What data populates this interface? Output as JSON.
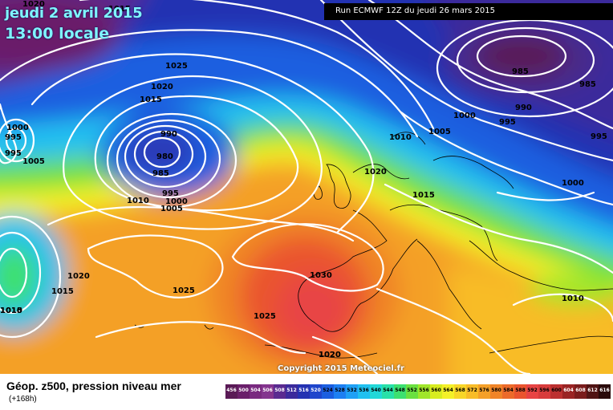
{
  "header": {
    "date": "jeudi 2 avril 2015",
    "time": "13:00 locale",
    "run": "Run ECMWF 12Z du jeudi 26 mars 2015"
  },
  "copyright": "Copyright 2015 Meteociel.fr",
  "legend": {
    "title": "Géop. z500, pression niveau mer",
    "subtitle": "(+168h)",
    "scale": [
      {
        "v": "456",
        "c": "#5a1a56"
      },
      {
        "v": "500",
        "c": "#6a1f6a"
      },
      {
        "v": "504",
        "c": "#7a2a80"
      },
      {
        "v": "506",
        "c": "#84348e"
      },
      {
        "v": "508",
        "c": "#5a2a90"
      },
      {
        "v": "512",
        "c": "#3b2a9c"
      },
      {
        "v": "516",
        "c": "#2432b2"
      },
      {
        "v": "520",
        "c": "#1f46cc"
      },
      {
        "v": "524",
        "c": "#1b5ee0"
      },
      {
        "v": "528",
        "c": "#1d7ff2"
      },
      {
        "v": "532",
        "c": "#1fa0f5"
      },
      {
        "v": "536",
        "c": "#20c0f0"
      },
      {
        "v": "540",
        "c": "#22d8d8"
      },
      {
        "v": "544",
        "c": "#28e0a8"
      },
      {
        "v": "548",
        "c": "#3ce070"
      },
      {
        "v": "552",
        "c": "#6ae040"
      },
      {
        "v": "556",
        "c": "#a0e62a"
      },
      {
        "v": "560",
        "c": "#d8ec20"
      },
      {
        "v": "564",
        "c": "#f4f028"
      },
      {
        "v": "568",
        "c": "#f8d628"
      },
      {
        "v": "572",
        "c": "#f8bc28"
      },
      {
        "v": "576",
        "c": "#f4a028"
      },
      {
        "v": "580",
        "c": "#f08428"
      },
      {
        "v": "584",
        "c": "#ec6a2a"
      },
      {
        "v": "588",
        "c": "#ea542e"
      },
      {
        "v": "592",
        "c": "#e84444"
      },
      {
        "v": "596",
        "c": "#d83c3c"
      },
      {
        "v": "600",
        "c": "#bc3030"
      },
      {
        "v": "604",
        "c": "#9a2424"
      },
      {
        "v": "608",
        "c": "#7a1c1c"
      },
      {
        "v": "612",
        "c": "#501414"
      },
      {
        "v": "616",
        "c": "#2a0a0a"
      }
    ]
  },
  "isobar_labels": [
    "1020",
    "1015",
    "1025",
    "1020",
    "1015",
    "1000",
    "995",
    "995",
    "1005",
    "990",
    "980",
    "985",
    "995",
    "1000",
    "1005",
    "1010",
    "1020",
    "1015",
    "1025",
    "1030",
    "1025",
    "1020",
    "1010",
    "1020",
    "1015",
    "1010",
    "1005",
    "1000",
    "995",
    "990",
    "985",
    "985",
    "995",
    "1000",
    "1010",
    "1020",
    "1015",
    "1010"
  ],
  "colors": {
    "title": "#7ff4ff",
    "isobar": "#ffffff"
  }
}
